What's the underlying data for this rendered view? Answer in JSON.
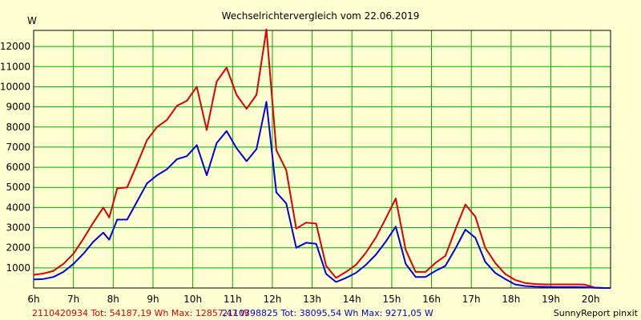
{
  "chart_data": {
    "type": "line",
    "title": "Wechselrichtervergleich vom 22.06.2019",
    "ylabel": "W",
    "xlabel": "",
    "x_tick_labels": [
      "6h",
      "7h",
      "8h",
      "9h",
      "10h",
      "11h",
      "12h",
      "13h",
      "14h",
      "15h",
      "16h",
      "17h",
      "18h",
      "19h",
      "20h"
    ],
    "y_ticks": [
      1000,
      2000,
      3000,
      4000,
      5000,
      6000,
      7000,
      8000,
      9000,
      10000,
      11000,
      12000
    ],
    "xlim": [
      6,
      20.5
    ],
    "ylim": [
      0,
      12800
    ],
    "grid": true,
    "x": [
      6.0,
      6.25,
      6.5,
      6.75,
      7.0,
      7.25,
      7.5,
      7.75,
      7.9,
      8.1,
      8.35,
      8.6,
      8.85,
      9.1,
      9.35,
      9.6,
      9.85,
      10.1,
      10.35,
      10.6,
      10.85,
      11.1,
      11.35,
      11.6,
      11.85,
      12.1,
      12.35,
      12.6,
      12.85,
      13.1,
      13.35,
      13.6,
      13.85,
      14.1,
      14.35,
      14.6,
      14.85,
      15.1,
      15.35,
      15.6,
      15.85,
      16.1,
      16.35,
      16.6,
      16.85,
      17.1,
      17.35,
      17.6,
      17.85,
      18.1,
      18.35,
      18.6,
      18.85,
      19.1,
      19.35,
      19.6,
      19.85,
      20.1,
      20.35,
      20.5
    ],
    "series": [
      {
        "name": "2110420934 Tot: 54187,19 Wh Max: 12857,47 W",
        "color": "#dd0000",
        "values": [
          650,
          720,
          850,
          1200,
          1700,
          2450,
          3250,
          4000,
          3500,
          4950,
          5000,
          6150,
          7350,
          8000,
          8350,
          9050,
          9300,
          10000,
          7850,
          10250,
          10950,
          9600,
          8900,
          9600,
          12850,
          6850,
          5850,
          2950,
          3250,
          3200,
          1100,
          500,
          800,
          1150,
          1750,
          2500,
          3450,
          4450,
          1900,
          800,
          800,
          1250,
          1600,
          2900,
          4150,
          3550,
          2000,
          1250,
          700,
          400,
          250,
          200,
          180,
          180,
          180,
          180,
          170,
          20,
          0,
          0
        ]
      },
      {
        "name": "2110398825 Tot: 38095,54 Wh Max: 9271,05 W",
        "color": "#0000dd",
        "values": [
          420,
          450,
          550,
          800,
          1200,
          1700,
          2300,
          2750,
          2400,
          3400,
          3400,
          4300,
          5200,
          5600,
          5900,
          6400,
          6550,
          7100,
          5600,
          7200,
          7800,
          6950,
          6300,
          6900,
          9250,
          4750,
          4200,
          2000,
          2250,
          2200,
          700,
          300,
          500,
          750,
          1150,
          1650,
          2300,
          3050,
          1200,
          550,
          550,
          850,
          1100,
          1950,
          2900,
          2500,
          1300,
          750,
          450,
          180,
          100,
          70,
          60,
          50,
          50,
          50,
          40,
          10,
          0,
          0
        ]
      }
    ]
  },
  "footer": {
    "series1_label": "2110420934 Tot: 54187,19 Wh Max: 12857,47 W",
    "series2_label": "2110398825 Tot: 38095,54 Wh Max: 9271,05 W",
    "credit": "SunnyReport pinxit"
  },
  "colors": {
    "background": "#ffffd2",
    "grid": "#00aa00",
    "series1": "#dd0000",
    "series2": "#0000dd"
  }
}
